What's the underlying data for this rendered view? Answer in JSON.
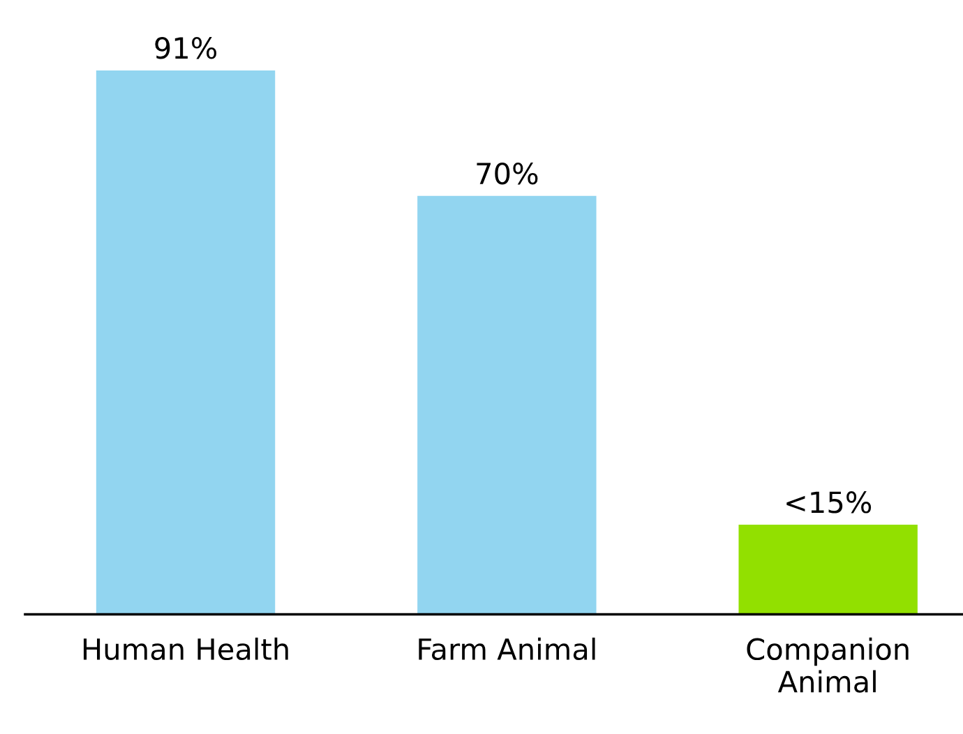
{
  "chart_data": {
    "type": "bar",
    "categories": [
      "Human Health",
      "Farm Animal",
      "Companion\nAnimal"
    ],
    "values": [
      91,
      70,
      15
    ],
    "colors": [
      "#92d5f0",
      "#92d5f0",
      "#92e000"
    ],
    "value_labels": [
      "91%",
      "70%",
      "<15%"
    ],
    "grid": false
  }
}
